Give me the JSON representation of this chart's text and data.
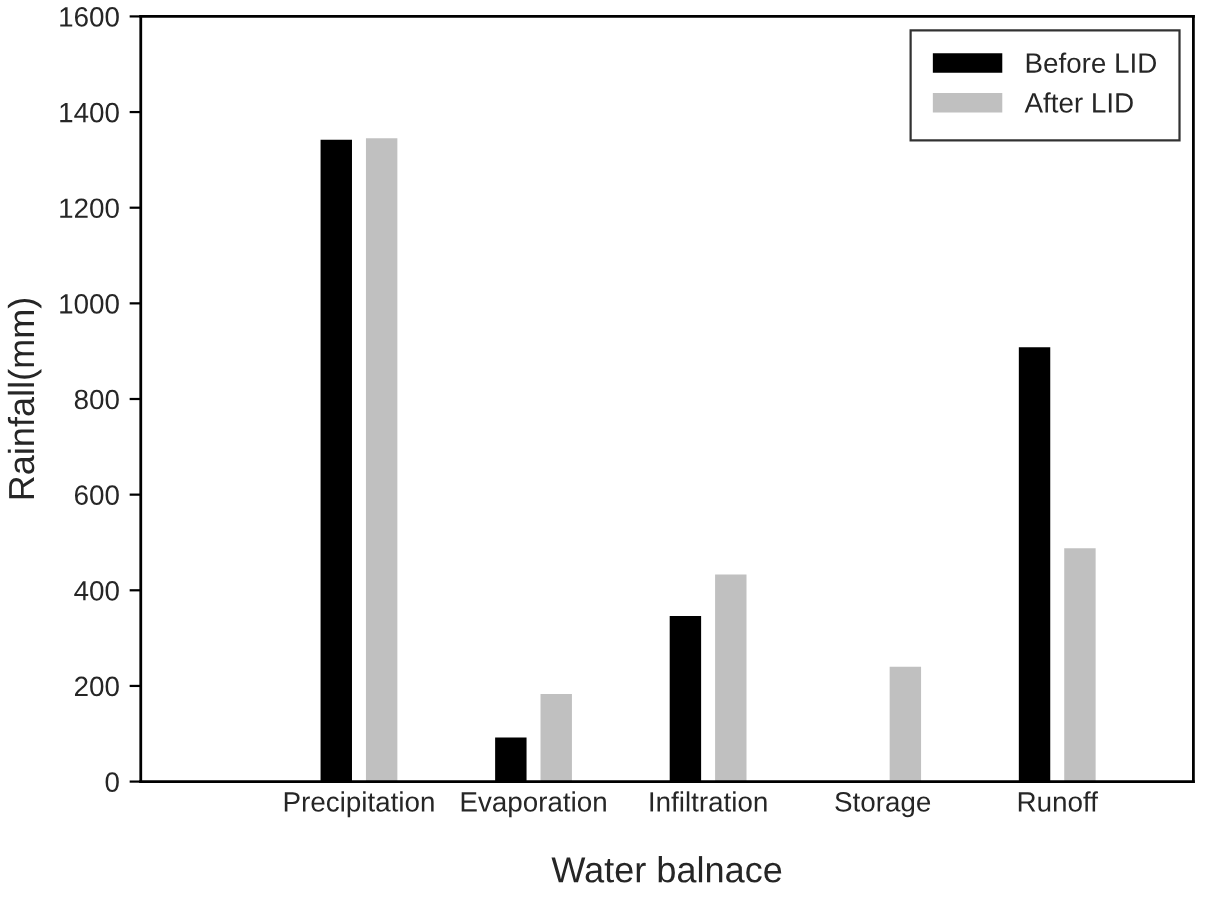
{
  "chart_data": {
    "type": "bar",
    "xlabel": "Water balnace",
    "ylabel": "Rainfall(mm)",
    "categories": [
      "Precipitation",
      "Evaporation",
      "Infiltration",
      "Storage",
      "Runoff"
    ],
    "series": [
      {
        "name": "Before LID",
        "color": "#000000",
        "values": [
          1342,
          92,
          346,
          0,
          908
        ]
      },
      {
        "name": "After LID",
        "color": "#c0c0c0",
        "values": [
          1345,
          183,
          433,
          240,
          488
        ]
      }
    ],
    "ylim": [
      0,
      1600
    ],
    "yticks": [
      0,
      200,
      400,
      600,
      800,
      1000,
      1200,
      1400,
      1600
    ],
    "grid": false,
    "legend": "top right"
  }
}
